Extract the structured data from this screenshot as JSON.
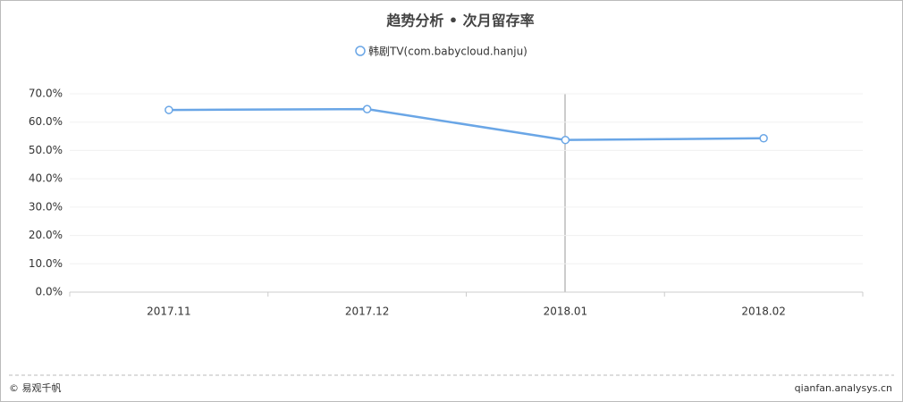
{
  "chart_data": {
    "type": "line",
    "title": "趋势分析 • 次月留存率",
    "categories": [
      "2017.11",
      "2017.12",
      "2018.01",
      "2018.02"
    ],
    "series": [
      {
        "name": "韩剧TV(com.babycloud.hanju)",
        "color": "#6aa6e6",
        "values": [
          64.3,
          64.6,
          53.7,
          54.3
        ]
      }
    ],
    "ylim": [
      0,
      70
    ],
    "yticks": [
      {
        "value": 0,
        "label": "0.0%"
      },
      {
        "value": 10,
        "label": "10.0%"
      },
      {
        "value": 20,
        "label": "20.0%"
      },
      {
        "value": 30,
        "label": "30.0%"
      },
      {
        "value": 40,
        "label": "40.0%"
      },
      {
        "value": 50,
        "label": "50.0%"
      },
      {
        "value": 60,
        "label": "60.0%"
      },
      {
        "value": 70,
        "label": "70.0%"
      }
    ],
    "grid": true,
    "legend": "top"
  },
  "footer": {
    "left": "© 易观千帆",
    "right": "qianfan.analysys.cn"
  }
}
